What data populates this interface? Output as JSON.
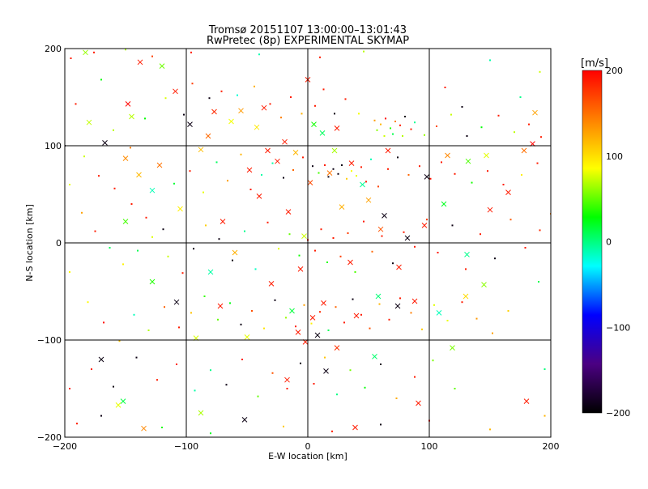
{
  "chart_data": {
    "type": "scatter",
    "title": "Tromsø 20151107 13:00:00–13:01:43",
    "subtitle": "RwPretec (8p) EXPERIMENTAL SKYMAP",
    "xlabel": "E-W location [km]",
    "ylabel": "N-S location [km]",
    "xlim": [
      -200,
      200
    ],
    "ylim": [
      -200,
      200
    ],
    "x_ticks": [
      -200,
      -100,
      0,
      100,
      200
    ],
    "y_ticks": [
      -200,
      -100,
      0,
      100,
      200
    ],
    "x_tick_labels": [
      "−200",
      "−100",
      "0",
      "100",
      "200"
    ],
    "y_tick_labels": [
      "−200",
      "−100",
      "0",
      "100",
      "200"
    ],
    "grid": true,
    "colorbar": {
      "label": "[m/s]",
      "range": [
        -200,
        200
      ],
      "ticks": [
        200,
        100,
        0,
        -100,
        -200
      ],
      "tick_labels": [
        "200",
        "100",
        "0",
        "−100",
        "−200"
      ],
      "colors": [
        "#000000",
        "#4b0082",
        "#0000ff",
        "#00ffff",
        "#00ff00",
        "#ffff00",
        "#ff8000",
        "#ff0000"
      ]
    },
    "series": [
      {
        "marker": "x",
        "points": [
          [
            -183,
            196
          ],
          [
            -138,
            186
          ],
          [
            -120,
            182
          ],
          [
            -148,
            143
          ],
          [
            -180,
            124
          ],
          [
            -145,
            130
          ],
          [
            -97,
            122
          ],
          [
            -82,
            110
          ],
          [
            -63,
            125
          ],
          [
            -55,
            136
          ],
          [
            -42,
            119
          ],
          [
            -33,
            95
          ],
          [
            -10,
            93
          ],
          [
            0,
            168
          ],
          [
            5,
            122
          ],
          [
            -25,
            84
          ],
          [
            -48,
            75
          ],
          [
            -88,
            96
          ],
          [
            -122,
            80
          ],
          [
            -150,
            87
          ],
          [
            -167,
            103
          ],
          [
            -128,
            54
          ],
          [
            -105,
            35
          ],
          [
            -70,
            22
          ],
          [
            -40,
            48
          ],
          [
            -16,
            32
          ],
          [
            2,
            62
          ],
          [
            18,
            72
          ],
          [
            24,
            118
          ],
          [
            36,
            82
          ],
          [
            50,
            44
          ],
          [
            63,
            28
          ],
          [
            82,
            5
          ],
          [
            96,
            18
          ],
          [
            75,
            -25
          ],
          [
            58,
            -55
          ],
          [
            88,
            -60
          ],
          [
            108,
            -72
          ],
          [
            130,
            -55
          ],
          [
            150,
            34
          ],
          [
            165,
            52
          ],
          [
            178,
            95
          ],
          [
            187,
            134
          ],
          [
            180,
            -163
          ],
          [
            -152,
            -163
          ],
          [
            -135,
            -191
          ],
          [
            -156,
            -167
          ],
          [
            -170,
            -120
          ],
          [
            -128,
            -40
          ],
          [
            -108,
            -61
          ],
          [
            -92,
            -98
          ],
          [
            -72,
            -65
          ],
          [
            -50,
            -97
          ],
          [
            -30,
            -42
          ],
          [
            -8,
            -92
          ],
          [
            4,
            -77
          ],
          [
            13,
            -62
          ],
          [
            24,
            -108
          ],
          [
            40,
            -75
          ],
          [
            15,
            -132
          ],
          [
            -2,
            -102
          ],
          [
            8,
            -95
          ],
          [
            -88,
            -175
          ],
          [
            -52,
            -182
          ],
          [
            -17,
            -141
          ],
          [
            39,
            -190
          ],
          [
            91,
            -165
          ],
          [
            35,
            -20
          ],
          [
            -60,
            -10
          ],
          [
            -80,
            -30
          ],
          [
            -13,
            -70
          ],
          [
            115,
            90
          ],
          [
            132,
            84
          ],
          [
            147,
            90
          ],
          [
            98,
            68
          ],
          [
            112,
            40
          ],
          [
            -6,
            -27
          ],
          [
            55,
            -117
          ],
          [
            22,
            95
          ],
          [
            -19,
            104
          ],
          [
            45,
            60
          ],
          [
            -77,
            135
          ],
          [
            -109,
            156
          ],
          [
            12,
            113
          ],
          [
            60,
            14
          ],
          [
            -150,
            22
          ],
          [
            74,
            -65
          ],
          [
            119,
            -108
          ],
          [
            145,
            -43
          ],
          [
            -36,
            139
          ],
          [
            28,
            37
          ],
          [
            -3,
            7
          ],
          [
            66,
            95
          ],
          [
            -139,
            70
          ],
          [
            185,
            102
          ],
          [
            131,
            -12
          ]
        ]
      },
      {
        "marker": "dot",
        "points": [
          [
            -191,
            143
          ],
          [
            -170,
            168
          ],
          [
            -160,
            116
          ],
          [
            -146,
            98
          ],
          [
            -134,
            128
          ],
          [
            -117,
            149
          ],
          [
            -102,
            132
          ],
          [
            -95,
            164
          ],
          [
            -81,
            149
          ],
          [
            -71,
            156
          ],
          [
            -58,
            152
          ],
          [
            -44,
            161
          ],
          [
            -31,
            143
          ],
          [
            -22,
            129
          ],
          [
            -14,
            150
          ],
          [
            -5,
            133
          ],
          [
            6,
            141
          ],
          [
            13,
            158
          ],
          [
            22,
            133
          ],
          [
            31,
            148
          ],
          [
            42,
            133
          ],
          [
            55,
            126
          ],
          [
            60,
            122
          ],
          [
            64,
            128
          ],
          [
            68,
            118
          ],
          [
            72,
            125
          ],
          [
            76,
            121
          ],
          [
            80,
            130
          ],
          [
            85,
            117
          ],
          [
            70,
            112
          ],
          [
            57,
            116
          ],
          [
            63,
            110
          ],
          [
            78,
            110
          ],
          [
            88,
            124
          ],
          [
            96,
            111
          ],
          [
            106,
            120
          ],
          [
            118,
            132
          ],
          [
            131,
            110
          ],
          [
            143,
            119
          ],
          [
            157,
            131
          ],
          [
            170,
            114
          ],
          [
            182,
            122
          ],
          [
            192,
            109
          ],
          [
            -184,
            89
          ],
          [
            -172,
            69
          ],
          [
            -159,
            56
          ],
          [
            -145,
            40
          ],
          [
            -133,
            26
          ],
          [
            -119,
            14
          ],
          [
            -110,
            61
          ],
          [
            -97,
            74
          ],
          [
            -86,
            52
          ],
          [
            -75,
            83
          ],
          [
            -66,
            64
          ],
          [
            -55,
            91
          ],
          [
            -47,
            55
          ],
          [
            -38,
            70
          ],
          [
            -29,
            82
          ],
          [
            -20,
            67
          ],
          [
            -12,
            75
          ],
          [
            -4,
            88
          ],
          [
            4,
            79
          ],
          [
            9,
            72
          ],
          [
            14,
            80
          ],
          [
            17,
            68
          ],
          [
            21,
            76
          ],
          [
            25,
            71
          ],
          [
            28,
            80
          ],
          [
            32,
            66
          ],
          [
            36,
            74
          ],
          [
            40,
            69
          ],
          [
            44,
            78
          ],
          [
            48,
            63
          ],
          [
            52,
            86
          ],
          [
            58,
            58
          ],
          [
            66,
            76
          ],
          [
            74,
            88
          ],
          [
            83,
            70
          ],
          [
            92,
            79
          ],
          [
            101,
            66
          ],
          [
            110,
            83
          ],
          [
            121,
            71
          ],
          [
            135,
            62
          ],
          [
            148,
            74
          ],
          [
            161,
            60
          ],
          [
            176,
            70
          ],
          [
            189,
            82
          ],
          [
            -186,
            31
          ],
          [
            -175,
            12
          ],
          [
            -163,
            -5
          ],
          [
            -152,
            -22
          ],
          [
            -140,
            -8
          ],
          [
            -128,
            6
          ],
          [
            -115,
            -14
          ],
          [
            -103,
            -31
          ],
          [
            -94,
            -6
          ],
          [
            -84,
            18
          ],
          [
            -73,
            4
          ],
          [
            -62,
            -18
          ],
          [
            -52,
            12
          ],
          [
            -43,
            -27
          ],
          [
            -33,
            21
          ],
          [
            -24,
            -6
          ],
          [
            -15,
            9
          ],
          [
            -7,
            -13
          ],
          [
            0,
            3
          ],
          [
            6,
            -8
          ],
          [
            11,
            14
          ],
          [
            16,
            -20
          ],
          [
            21,
            5
          ],
          [
            27,
            -14
          ],
          [
            33,
            10
          ],
          [
            39,
            -30
          ],
          [
            46,
            22
          ],
          [
            53,
            -9
          ],
          [
            61,
            7
          ],
          [
            70,
            -21
          ],
          [
            79,
            11
          ],
          [
            88,
            -4
          ],
          [
            98,
            24
          ],
          [
            107,
            -10
          ],
          [
            119,
            18
          ],
          [
            130,
            -27
          ],
          [
            142,
            9
          ],
          [
            154,
            -16
          ],
          [
            167,
            24
          ],
          [
            179,
            -5
          ],
          [
            191,
            13
          ],
          [
            -181,
            -61
          ],
          [
            -168,
            -82
          ],
          [
            -155,
            -101
          ],
          [
            -143,
            -74
          ],
          [
            -131,
            -90
          ],
          [
            -118,
            -66
          ],
          [
            -106,
            -87
          ],
          [
            -96,
            -72
          ],
          [
            -85,
            -55
          ],
          [
            -74,
            -79
          ],
          [
            -64,
            -62
          ],
          [
            -55,
            -84
          ],
          [
            -46,
            -70
          ],
          [
            -36,
            -88
          ],
          [
            -27,
            -59
          ],
          [
            -18,
            -77
          ],
          [
            -10,
            -86
          ],
          [
            -3,
            -64
          ],
          [
            3,
            -83
          ],
          [
            10,
            -71
          ],
          [
            17,
            -90
          ],
          [
            23,
            -66
          ],
          [
            30,
            -82
          ],
          [
            37,
            -58
          ],
          [
            44,
            -74
          ],
          [
            51,
            -88
          ],
          [
            59,
            -63
          ],
          [
            67,
            -79
          ],
          [
            76,
            -57
          ],
          [
            85,
            -72
          ],
          [
            94,
            -89
          ],
          [
            104,
            -64
          ],
          [
            115,
            -80
          ],
          [
            127,
            -61
          ],
          [
            139,
            -78
          ],
          [
            152,
            -93
          ],
          [
            165,
            -70
          ],
          [
            -178,
            -130
          ],
          [
            -160,
            -148
          ],
          [
            -141,
            -118
          ],
          [
            -124,
            -141
          ],
          [
            -108,
            -125
          ],
          [
            -93,
            -152
          ],
          [
            -80,
            -131
          ],
          [
            -67,
            -146
          ],
          [
            -54,
            -120
          ],
          [
            -41,
            -158
          ],
          [
            -29,
            -134
          ],
          [
            -17,
            -150
          ],
          [
            -6,
            -124
          ],
          [
            5,
            -145
          ],
          [
            14,
            -118
          ],
          [
            24,
            -156
          ],
          [
            35,
            -131
          ],
          [
            47,
            -149
          ],
          [
            60,
            -125
          ],
          [
            73,
            -160
          ],
          [
            88,
            -138
          ],
          [
            103,
            -121
          ],
          [
            121,
            -150
          ],
          [
            -190,
            -186
          ],
          [
            -170,
            -178
          ],
          [
            -120,
            -190
          ],
          [
            -80,
            -196
          ],
          [
            -20,
            -189
          ],
          [
            20,
            -194
          ],
          [
            60,
            -187
          ],
          [
            100,
            -183
          ],
          [
            150,
            -192
          ],
          [
            195,
            -178
          ],
          [
            -195,
            190
          ],
          [
            -176,
            196
          ],
          [
            -150,
            199
          ],
          [
            -128,
            192
          ],
          [
            -96,
            196
          ],
          [
            -40,
            194
          ],
          [
            10,
            191
          ],
          [
            46,
            197
          ],
          [
            150,
            188
          ],
          [
            191,
            176
          ],
          [
            190,
            -40
          ],
          [
            195,
            -130
          ],
          [
            -196,
            60
          ],
          [
            -196,
            -30
          ],
          [
            -196,
            -150
          ],
          [
            113,
            160
          ],
          [
            127,
            140
          ],
          [
            -200,
            100
          ],
          [
            200,
            30
          ],
          [
            175,
            150
          ]
        ]
      }
    ]
  }
}
